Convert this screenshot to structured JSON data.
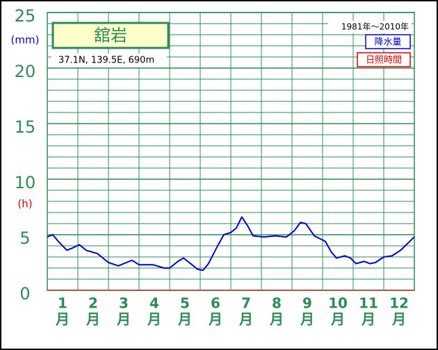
{
  "chart_data": {
    "type": "line",
    "title": "舘岩",
    "location": "37.1N,  139.5E,  690m",
    "period": "1981年〜2010年",
    "y_unit_left": "(mm)",
    "y_unit_right": "(h)",
    "legend": [
      {
        "name": "降水量",
        "color": "#0000cc"
      },
      {
        "name": "日照時間",
        "color": "#cc0000"
      }
    ],
    "categories": [
      "1",
      "2",
      "3",
      "4",
      "5",
      "6",
      "7",
      "8",
      "9",
      "10",
      "11",
      "12"
    ],
    "category_unit": "月",
    "x": [
      0,
      0.18,
      0.36,
      0.64,
      0.82,
      1.05,
      1.27,
      1.64,
      2.0,
      2.32,
      2.59,
      2.77,
      3.0,
      3.45,
      3.82,
      4.0,
      4.27,
      4.45,
      4.64,
      4.91,
      5.09,
      5.27,
      5.55,
      5.77,
      6.0,
      6.18,
      6.36,
      6.55,
      6.73,
      7.09,
      7.45,
      7.82,
      8.09,
      8.27,
      8.45,
      8.73,
      9.09,
      9.27,
      9.45,
      9.73,
      9.91,
      10.09,
      10.36,
      10.55,
      10.73,
      11.0,
      11.27,
      11.55,
      12.0
    ],
    "series": [
      {
        "color": "#0000cc",
        "values": [
          4.8,
          5.0,
          4.4,
          3.6,
          3.8,
          4.1,
          3.6,
          3.3,
          2.5,
          2.2,
          2.5,
          2.7,
          2.3,
          2.3,
          2.0,
          2.0,
          2.6,
          2.9,
          2.5,
          1.9,
          1.8,
          2.4,
          3.9,
          5.0,
          5.2,
          5.6,
          6.6,
          5.8,
          4.9,
          4.8,
          4.9,
          4.8,
          5.4,
          6.1,
          6.0,
          4.9,
          4.4,
          3.5,
          2.9,
          3.1,
          2.9,
          2.4,
          2.6,
          2.4,
          2.5,
          3.0,
          3.1,
          3.6,
          4.8
        ]
      }
    ],
    "xlim": [
      0,
      12
    ],
    "ylim": [
      0,
      25
    ],
    "yticks": [
      0,
      5,
      10,
      15,
      20,
      25
    ],
    "yminorticks": [
      1,
      2,
      3,
      4,
      6,
      7,
      8,
      9,
      11,
      12,
      13,
      14,
      16,
      17,
      18,
      19,
      21,
      22,
      23,
      24
    ],
    "grid": true
  }
}
